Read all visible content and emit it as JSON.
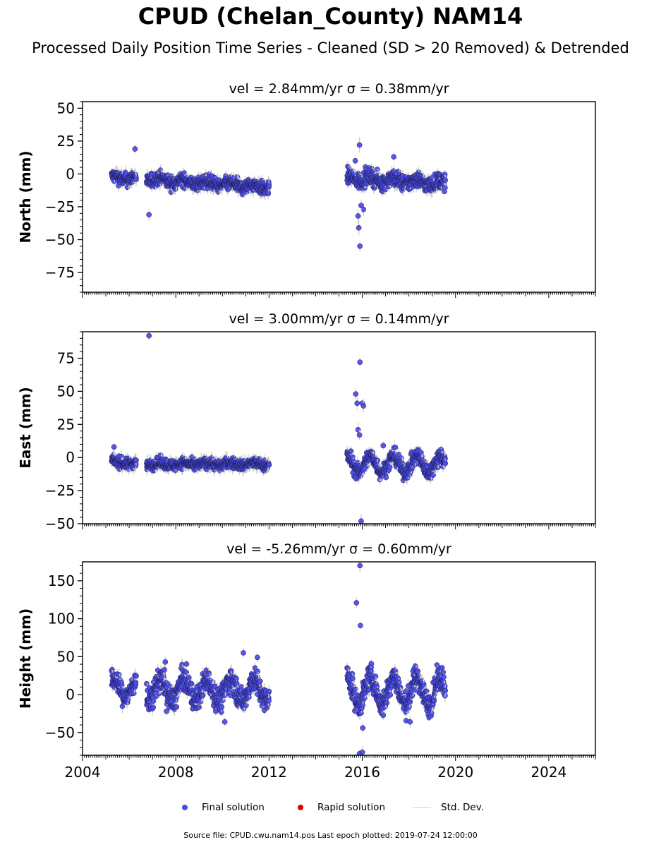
{
  "title": "CPUD (Chelan_County) NAM14",
  "subtitle": "Processed Daily Position Time Series - Cleaned (SD > 20 Removed) & Detrended",
  "colors": {
    "final": "#4a4ae8",
    "rapid": "#e00000",
    "stddev": "#cccccc",
    "edge": "#1a1a40"
  },
  "legend": {
    "final": "Final solution",
    "rapid": "Rapid solution",
    "stddev": "Std. Dev."
  },
  "source": "Source file: CPUD.cwu.nam14.pos  Last epoch plotted: 2019-07-24 12:00:00",
  "chart_data": [
    {
      "type": "scatter",
      "title": "vel = 2.84mm/yr   σ = 0.38mm/yr",
      "ylabel": "North (mm)",
      "xlim": [
        2004,
        2026
      ],
      "ylim": [
        -90,
        55
      ],
      "yticks": [
        -75,
        -50,
        -25,
        0,
        25,
        50
      ],
      "xticks": [
        2004,
        2008,
        2012,
        2016,
        2020,
        2024
      ],
      "show_xticklabels": false,
      "segments": [
        {
          "start": 2005.25,
          "end": 2006.3,
          "level": -3,
          "slope": 0,
          "amp": 1.5,
          "noise": 2.5
        },
        {
          "start": 2006.75,
          "end": 2012.0,
          "level": -4,
          "slope": -1.2,
          "amp": 1.5,
          "noise": 2.5
        },
        {
          "start": 2015.35,
          "end": 2019.56,
          "level": -3,
          "slope": -1.0,
          "amp": 2.0,
          "noise": 3.0
        }
      ],
      "outliers": [
        {
          "x": 2006.25,
          "y": 19
        },
        {
          "x": 2006.85,
          "y": -31
        },
        {
          "x": 2015.88,
          "y": 22
        },
        {
          "x": 2015.82,
          "y": -32
        },
        {
          "x": 2015.85,
          "y": -41
        },
        {
          "x": 2015.9,
          "y": -55
        },
        {
          "x": 2016.05,
          "y": -27
        },
        {
          "x": 2015.95,
          "y": -24
        },
        {
          "x": 2017.35,
          "y": 13
        },
        {
          "x": 2015.7,
          "y": 10
        }
      ]
    },
    {
      "type": "scatter",
      "title": "vel = 3.00mm/yr   σ = 0.14mm/yr",
      "ylabel": "East (mm)",
      "xlim": [
        2004,
        2026
      ],
      "ylim": [
        -50,
        95
      ],
      "yticks": [
        -50,
        -25,
        0,
        25,
        50,
        75
      ],
      "xticks": [
        2004,
        2008,
        2012,
        2016,
        2020,
        2024
      ],
      "show_xticklabels": false,
      "segments": [
        {
          "start": 2005.25,
          "end": 2006.3,
          "level": -3,
          "slope": -1.5,
          "amp": 1.0,
          "noise": 2.0
        },
        {
          "start": 2006.75,
          "end": 2012.0,
          "level": -5,
          "slope": 0,
          "amp": 1.0,
          "noise": 2.0
        },
        {
          "start": 2015.35,
          "end": 2019.56,
          "level": -5,
          "slope": 0,
          "amp": 6.0,
          "noise": 3.0
        }
      ],
      "outliers": [
        {
          "x": 2006.85,
          "y": 92
        },
        {
          "x": 2005.35,
          "y": 8
        },
        {
          "x": 2015.72,
          "y": 48
        },
        {
          "x": 2015.78,
          "y": 41
        },
        {
          "x": 2015.9,
          "y": 72
        },
        {
          "x": 2016.0,
          "y": 41
        },
        {
          "x": 2016.05,
          "y": 39
        },
        {
          "x": 2015.82,
          "y": 21
        },
        {
          "x": 2015.88,
          "y": 17
        },
        {
          "x": 2015.95,
          "y": -48
        },
        {
          "x": 2016.9,
          "y": 9
        }
      ]
    },
    {
      "type": "scatter",
      "title": "vel = -5.26mm/yr   σ = 0.60mm/yr",
      "ylabel": "Height (mm)",
      "xlim": [
        2004,
        2026
      ],
      "ylim": [
        -80,
        175
      ],
      "yticks": [
        -50,
        0,
        50,
        100,
        150
      ],
      "xticks": [
        2004,
        2008,
        2012,
        2016,
        2020,
        2024
      ],
      "show_xticklabels": true,
      "segments": [
        {
          "start": 2005.25,
          "end": 2006.3,
          "level": 8,
          "slope": 0,
          "amp": 12,
          "noise": 7
        },
        {
          "start": 2006.75,
          "end": 2012.0,
          "level": 6,
          "slope": 0,
          "amp": 14,
          "noise": 8
        },
        {
          "start": 2015.35,
          "end": 2019.56,
          "level": 5,
          "slope": 0,
          "amp": 18,
          "noise": 8
        }
      ],
      "outliers": [
        {
          "x": 2015.9,
          "y": 170
        },
        {
          "x": 2015.75,
          "y": 121
        },
        {
          "x": 2015.92,
          "y": 91
        },
        {
          "x": 2015.88,
          "y": -78
        },
        {
          "x": 2016.0,
          "y": -76
        },
        {
          "x": 2016.02,
          "y": -44
        },
        {
          "x": 2010.9,
          "y": 55
        },
        {
          "x": 2010.1,
          "y": -36
        },
        {
          "x": 2007.55,
          "y": 43
        },
        {
          "x": 2011.5,
          "y": 49
        },
        {
          "x": 2007.6,
          "y": -22
        },
        {
          "x": 2018.05,
          "y": -36
        }
      ]
    }
  ]
}
